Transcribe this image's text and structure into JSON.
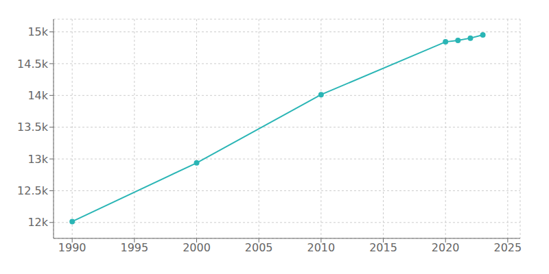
{
  "chart_data": {
    "type": "line",
    "x": [
      1990,
      2000,
      2010,
      2020,
      2021,
      2022,
      2023
    ],
    "values": [
      12015,
      12938,
      14012,
      14843,
      14865,
      14902,
      14952
    ],
    "color": "#2ab5b5",
    "marker": "circle",
    "xlim": [
      1988.5,
      2026
    ],
    "ylim": [
      11750,
      15200
    ],
    "xticks": [
      1990,
      1995,
      2000,
      2005,
      2010,
      2015,
      2020,
      2025
    ],
    "yticks": [
      {
        "value": 12000,
        "label": "12k"
      },
      {
        "value": 12500,
        "label": "12.5k"
      },
      {
        "value": 13000,
        "label": "13k"
      },
      {
        "value": 13500,
        "label": "13.5k"
      },
      {
        "value": 14000,
        "label": "14k"
      },
      {
        "value": 14500,
        "label": "14.5k"
      },
      {
        "value": 15000,
        "label": "15k"
      }
    ],
    "grid": true
  }
}
